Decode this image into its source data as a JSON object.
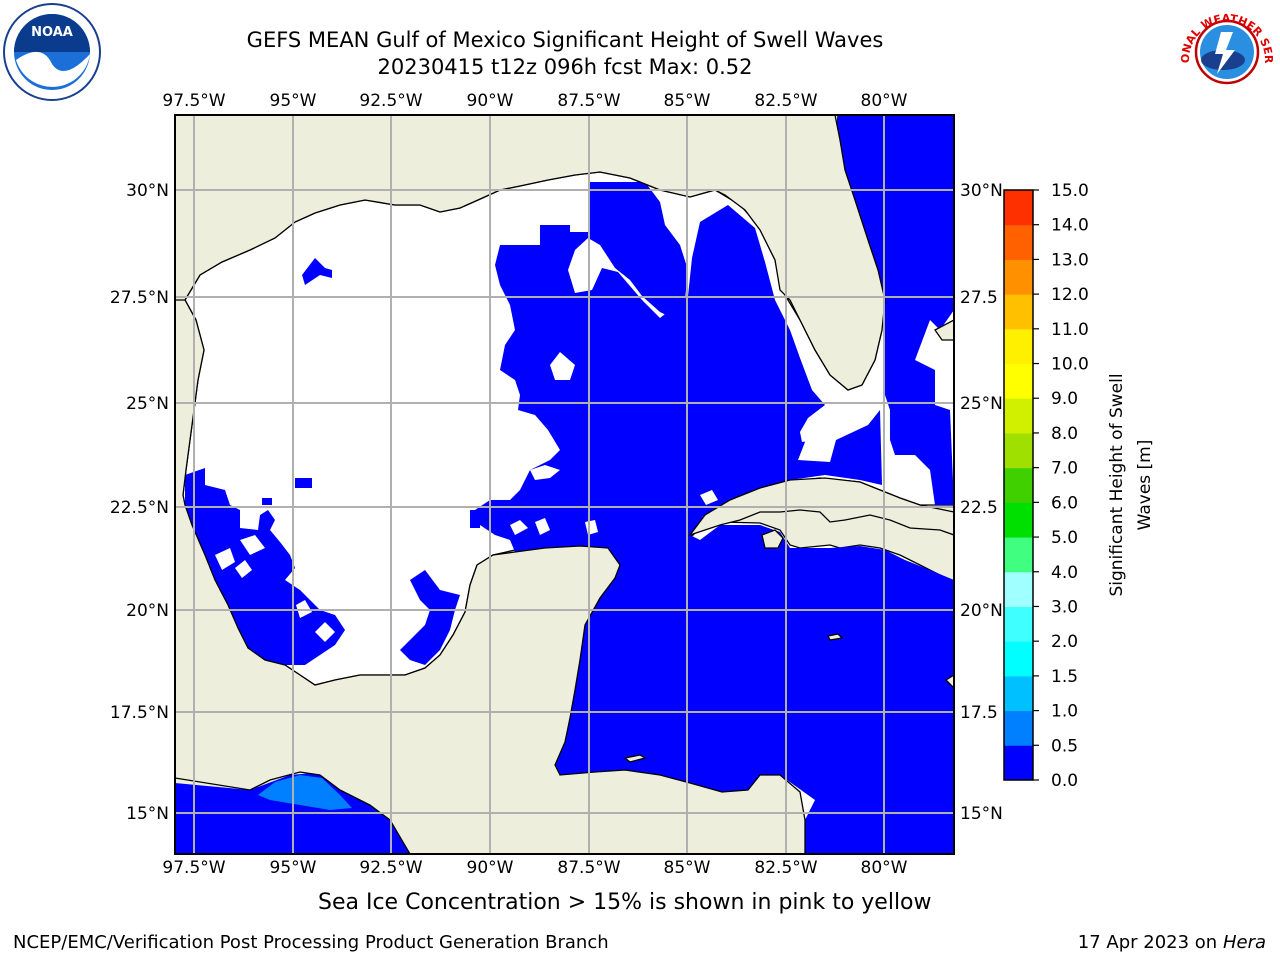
{
  "header": {
    "title_line1": "GEFS MEAN Gulf of Mexico Significant Height of Swell Waves",
    "title_line2": "20230415 t12z 096h fcst   Max: 0.52"
  },
  "logos": {
    "noaa_text": "NOAA",
    "nws_text": "NATIONAL WEATHER SERVICE"
  },
  "map": {
    "land_color": "#eeeedc",
    "ocean_swell_color": "#0000ff",
    "swell_half_meter_color": "#0080ff",
    "no_data_color": "#ffffff",
    "lon_labels": [
      "97.5°W",
      "95°W",
      "92.5°W",
      "90°W",
      "87.5°W",
      "85°W",
      "82.5°W",
      "80°W"
    ],
    "lat_labels_left": [
      "30°N",
      "27.5°N",
      "25°N",
      "22.5°N",
      "20°N",
      "17.5°N",
      "15°N"
    ],
    "lat_labels_right": [
      "30°N",
      "27.5",
      "25°N",
      "22.5",
      "20°N",
      "17.5",
      "15°N"
    ],
    "lon_range": [
      -98,
      -78
    ],
    "lat_range": [
      14,
      32
    ],
    "grid": true
  },
  "colorbar": {
    "label_line1": "Significant Height of Swell",
    "label_line2": "Waves [m]",
    "ticks": [
      "0.0",
      "0.5",
      "1.0",
      "1.5",
      "2.0",
      "3.0",
      "4.0",
      "5.0",
      "6.0",
      "7.0",
      "8.0",
      "9.0",
      "10.0",
      "11.0",
      "12.0",
      "13.0",
      "14.0",
      "15.0"
    ],
    "colors": [
      "#0000ff",
      "#0080ff",
      "#00c0ff",
      "#00ffff",
      "#40ffff",
      "#a0ffff",
      "#40ff80",
      "#00e000",
      "#40d000",
      "#a0e000",
      "#d0f000",
      "#ffff00",
      "#fff000",
      "#ffc000",
      "#ff9000",
      "#ff6000",
      "#ff3000",
      "#ff0000"
    ]
  },
  "chart_data": {
    "type": "heatmap",
    "title": "GEFS MEAN Gulf of Mexico Significant Height of Swell Waves",
    "subtitle": "20230415 t12z 096h fcst   Max: 0.52",
    "units": "m",
    "max_value": 0.52,
    "color_levels": [
      0.0,
      0.5,
      1.0,
      1.5,
      2.0,
      3.0,
      4.0,
      5.0,
      6.0,
      7.0,
      8.0,
      9.0,
      10.0,
      11.0,
      12.0,
      13.0,
      14.0,
      15.0
    ]
  },
  "notes": {
    "ice_note": "Sea Ice Concentration > 15% is shown in pink to yellow"
  },
  "footer": {
    "left": "NCEP/EMC/Verification Post Processing Product Generation Branch",
    "date": "17 Apr 2023 on ",
    "machine": "Hera"
  }
}
